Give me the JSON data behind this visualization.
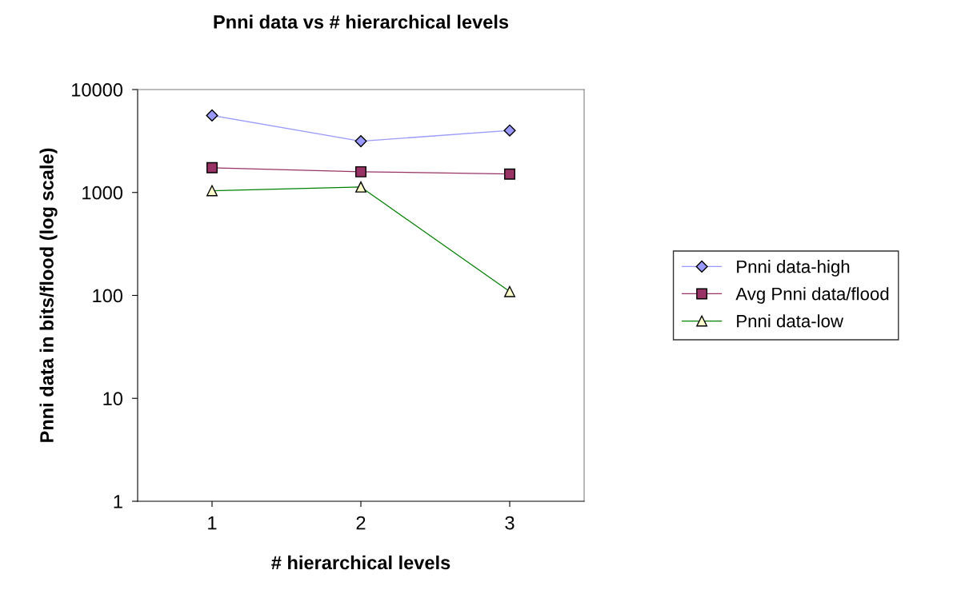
{
  "chart_data": {
    "type": "line",
    "title": "Pnni data vs # hierarchical levels",
    "xlabel": "# hierarchical levels",
    "ylabel": "Pnni data in bits/flood (log scale)",
    "categories": [
      "1",
      "2",
      "3"
    ],
    "series": [
      {
        "name": "Pnni data-high",
        "color": "#9999ff",
        "marker": "diamond",
        "values": [
          5600,
          3150,
          4000
        ]
      },
      {
        "name": "Avg Pnni data/flood",
        "color": "#993366",
        "marker": "square",
        "values": [
          1740,
          1590,
          1510
        ]
      },
      {
        "name": "Pnni data-low",
        "color": "#008000",
        "marker": "triangle",
        "values": [
          1040,
          1130,
          109
        ]
      }
    ],
    "log": "y",
    "ylim": [
      1,
      10000
    ],
    "yticks": [
      1,
      10,
      100,
      1000,
      10000
    ],
    "grid": false,
    "legend": "right",
    "line_style": "solid"
  }
}
